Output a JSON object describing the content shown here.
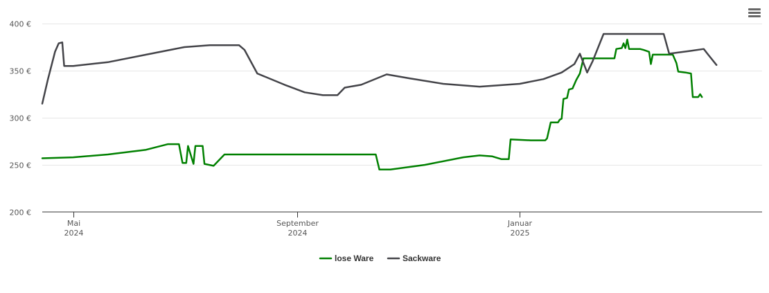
{
  "menu": {
    "icon": "hamburger-menu-icon"
  },
  "chart_data": {
    "type": "line",
    "title": "",
    "xlabel": "",
    "ylabel": "",
    "ylim": [
      200,
      400
    ],
    "y_ticks": [
      "200 €",
      "250 €",
      "300 €",
      "350 €",
      "400 €"
    ],
    "y_tick_values": [
      200,
      250,
      300,
      350,
      400
    ],
    "x_range": [
      "2024-04-14",
      "2025-05-14"
    ],
    "x_ticks": [
      {
        "date": "2024-05-01",
        "month": "Mai",
        "year": "2024"
      },
      {
        "date": "2024-09-01",
        "month": "September",
        "year": "2024"
      },
      {
        "date": "2025-01-01",
        "month": "Januar",
        "year": "2025"
      }
    ],
    "grid": true,
    "legend_position": "bottom-center",
    "series": [
      {
        "name": "lose Ware",
        "color": "#008000",
        "points": [
          [
            "2024-04-14",
            257
          ],
          [
            "2024-05-01",
            258
          ],
          [
            "2024-05-20",
            261
          ],
          [
            "2024-06-10",
            266
          ],
          [
            "2024-06-22",
            272
          ],
          [
            "2024-06-28",
            272
          ],
          [
            "2024-06-30",
            252
          ],
          [
            "2024-07-02",
            252
          ],
          [
            "2024-07-03",
            270
          ],
          [
            "2024-07-06",
            251
          ],
          [
            "2024-07-07",
            270
          ],
          [
            "2024-07-11",
            270
          ],
          [
            "2024-07-12",
            251
          ],
          [
            "2024-07-17",
            249
          ],
          [
            "2024-07-23",
            261
          ],
          [
            "2024-10-14",
            261
          ],
          [
            "2024-10-16",
            245
          ],
          [
            "2024-10-22",
            245
          ],
          [
            "2024-11-10",
            250
          ],
          [
            "2024-12-01",
            258
          ],
          [
            "2024-12-10",
            260
          ],
          [
            "2024-12-17",
            259
          ],
          [
            "2024-12-22",
            256
          ],
          [
            "2024-12-26",
            256
          ],
          [
            "2024-12-27",
            277
          ],
          [
            "2025-01-07",
            276
          ],
          [
            "2025-01-15",
            276
          ],
          [
            "2025-01-16",
            278
          ],
          [
            "2025-01-18",
            295
          ],
          [
            "2025-01-22",
            295
          ],
          [
            "2025-01-23",
            298
          ],
          [
            "2025-01-24",
            299
          ],
          [
            "2025-01-25",
            320
          ],
          [
            "2025-01-27",
            321
          ],
          [
            "2025-01-28",
            330
          ],
          [
            "2025-01-30",
            331
          ],
          [
            "2025-02-01",
            340
          ],
          [
            "2025-02-03",
            347
          ],
          [
            "2025-02-05",
            363
          ],
          [
            "2025-02-22",
            363
          ],
          [
            "2025-02-23",
            373
          ],
          [
            "2025-02-26",
            374
          ],
          [
            "2025-02-27",
            379
          ],
          [
            "2025-02-28",
            374
          ],
          [
            "2025-03-01",
            383
          ],
          [
            "2025-03-02",
            373
          ],
          [
            "2025-03-08",
            373
          ],
          [
            "2025-03-10",
            372
          ],
          [
            "2025-03-13",
            370
          ],
          [
            "2025-03-14",
            357
          ],
          [
            "2025-03-15",
            367
          ],
          [
            "2025-03-26",
            367
          ],
          [
            "2025-03-28",
            358
          ],
          [
            "2025-03-29",
            349
          ],
          [
            "2025-04-02",
            348
          ],
          [
            "2025-04-05",
            347
          ],
          [
            "2025-04-06",
            322
          ],
          [
            "2025-04-09",
            322
          ],
          [
            "2025-04-10",
            325
          ],
          [
            "2025-04-11",
            322
          ]
        ]
      },
      {
        "name": "Sackware",
        "color": "#434348",
        "points": [
          [
            "2024-04-14",
            315
          ],
          [
            "2024-04-17",
            340
          ],
          [
            "2024-04-21",
            370
          ],
          [
            "2024-04-23",
            379
          ],
          [
            "2024-04-25",
            380
          ],
          [
            "2024-04-26",
            355
          ],
          [
            "2024-05-01",
            355
          ],
          [
            "2024-05-20",
            359
          ],
          [
            "2024-06-10",
            367
          ],
          [
            "2024-07-01",
            375
          ],
          [
            "2024-07-15",
            377
          ],
          [
            "2024-07-31",
            377
          ],
          [
            "2024-08-03",
            372
          ],
          [
            "2024-08-10",
            347
          ],
          [
            "2024-08-25",
            335
          ],
          [
            "2024-09-05",
            327
          ],
          [
            "2024-09-15",
            324
          ],
          [
            "2024-09-23",
            324
          ],
          [
            "2024-09-27",
            332
          ],
          [
            "2024-10-06",
            335
          ],
          [
            "2024-10-20",
            346
          ],
          [
            "2024-11-01",
            342
          ],
          [
            "2024-11-20",
            336
          ],
          [
            "2024-12-10",
            333
          ],
          [
            "2025-01-01",
            336
          ],
          [
            "2025-01-14",
            341
          ],
          [
            "2025-01-24",
            348
          ],
          [
            "2025-01-31",
            357
          ],
          [
            "2025-02-03",
            368
          ],
          [
            "2025-02-07",
            348
          ],
          [
            "2025-02-10",
            360
          ],
          [
            "2025-02-16",
            389
          ],
          [
            "2025-03-21",
            389
          ],
          [
            "2025-03-24",
            368
          ],
          [
            "2025-04-05",
            371
          ],
          [
            "2025-04-12",
            373
          ],
          [
            "2025-04-14",
            368
          ],
          [
            "2025-04-19",
            356
          ]
        ]
      }
    ]
  }
}
